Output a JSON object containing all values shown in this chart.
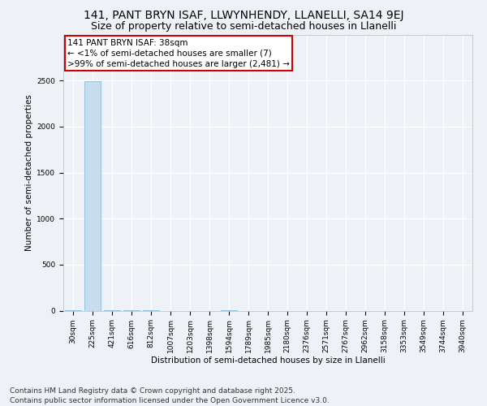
{
  "title": "141, PANT BRYN ISAF, LLWYNHENDY, LLANELLI, SA14 9EJ",
  "subtitle": "Size of property relative to semi-detached houses in Llanelli",
  "xlabel": "Distribution of semi-detached houses by size in Llanelli",
  "ylabel": "Number of semi-detached properties",
  "categories": [
    "30sqm",
    "225sqm",
    "421sqm",
    "616sqm",
    "812sqm",
    "1007sqm",
    "1203sqm",
    "1398sqm",
    "1594sqm",
    "1789sqm",
    "1985sqm",
    "2180sqm",
    "2376sqm",
    "2571sqm",
    "2767sqm",
    "2962sqm",
    "3158sqm",
    "3353sqm",
    "3549sqm",
    "3744sqm",
    "3940sqm"
  ],
  "values": [
    7,
    2490,
    3,
    1,
    1,
    0,
    0,
    0,
    1,
    0,
    0,
    0,
    0,
    0,
    0,
    0,
    0,
    0,
    0,
    0,
    0
  ],
  "bar_color": "#c5ddef",
  "bar_edge_color": "#7ab3d4",
  "annotation_title": "141 PANT BRYN ISAF: 38sqm",
  "annotation_line1": "← <1% of semi-detached houses are smaller (7)",
  "annotation_line2": ">99% of semi-detached houses are larger (2,481) →",
  "annotation_box_facecolor": "#ffffff",
  "annotation_box_edgecolor": "#cc0000",
  "ylim": [
    0,
    3000
  ],
  "yticks": [
    0,
    500,
    1000,
    1500,
    2000,
    2500
  ],
  "footer": "Contains HM Land Registry data © Crown copyright and database right 2025.\nContains public sector information licensed under the Open Government Licence v3.0.",
  "background_color": "#eef2f7",
  "grid_color": "#ffffff",
  "title_fontsize": 10,
  "subtitle_fontsize": 9,
  "axis_label_fontsize": 7.5,
  "tick_fontsize": 6.5,
  "annotation_fontsize": 7.5,
  "footer_fontsize": 6.5
}
